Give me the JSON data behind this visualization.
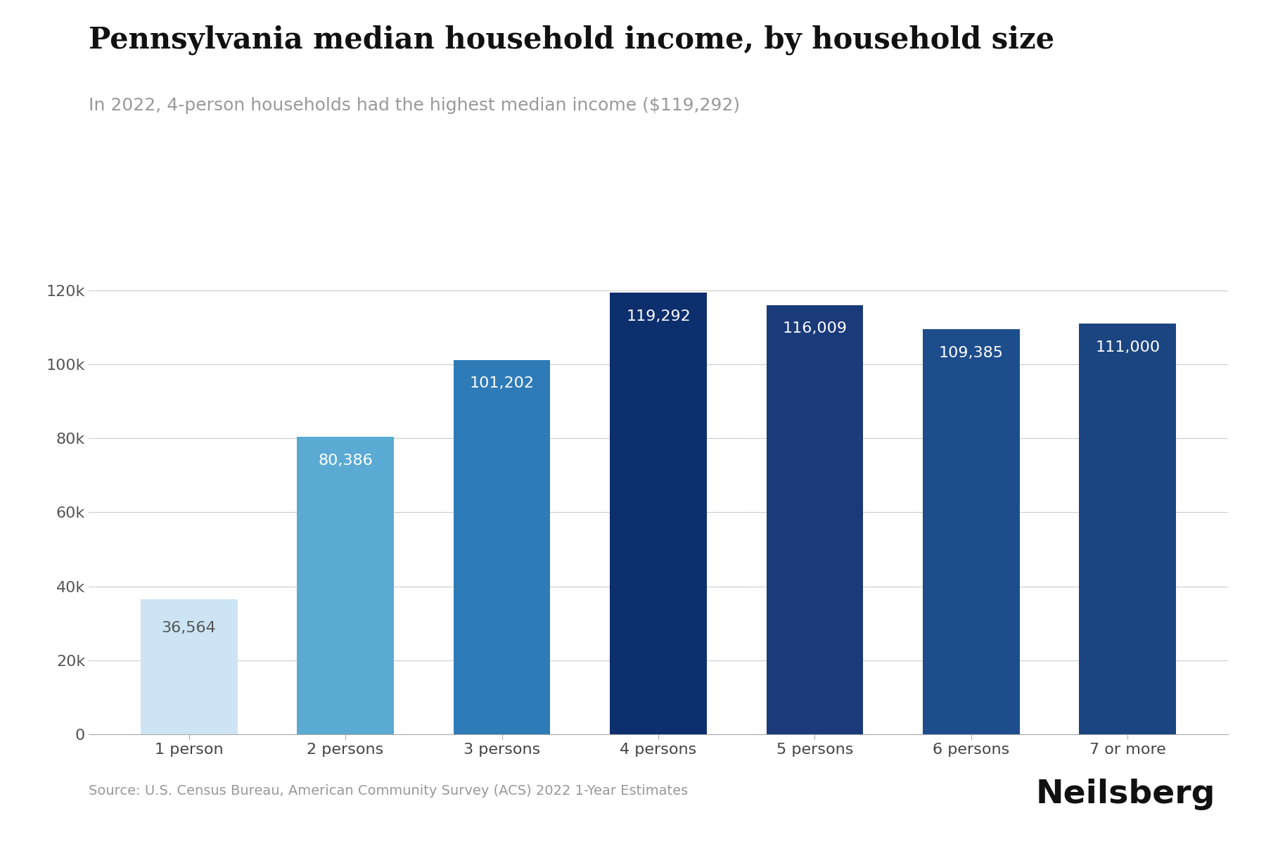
{
  "title": "Pennsylvania median household income, by household size",
  "subtitle": "In 2022, 4-person households had the highest median income ($119,292)",
  "categories": [
    "1 person",
    "2 persons",
    "3 persons",
    "4 persons",
    "5 persons",
    "6 persons",
    "7 or more"
  ],
  "values": [
    36564,
    80386,
    101202,
    119292,
    116009,
    109385,
    111000
  ],
  "bar_colors": [
    "#cce4f4",
    "#5aaad4",
    "#2e7bb8",
    "#0d2f6e",
    "#1a3a7a",
    "#1e4d8c",
    "#1b4580"
  ],
  "label_colors": [
    "#555555",
    "#ffffff",
    "#ffffff",
    "#ffffff",
    "#ffffff",
    "#ffffff",
    "#ffffff"
  ],
  "value_labels": [
    "36,564",
    "80,386",
    "101,202",
    "119,292",
    "116,009",
    "109,385",
    "111,000"
  ],
  "ylim": [
    0,
    130000
  ],
  "yticks": [
    0,
    20000,
    40000,
    60000,
    80000,
    100000,
    120000
  ],
  "ytick_labels": [
    "0",
    "20k",
    "40k",
    "60k",
    "80k",
    "100k",
    "120k"
  ],
  "source_text": "Source: U.S. Census Bureau, American Community Survey (ACS) 2022 1-Year Estimates",
  "brand_text": "Neilsberg",
  "background_color": "#ffffff",
  "title_fontsize": 30,
  "subtitle_fontsize": 18,
  "tick_fontsize": 16,
  "label_fontsize": 16,
  "source_fontsize": 14,
  "brand_fontsize": 34,
  "grid_color": "#cccccc",
  "axis_color": "#aaaaaa"
}
